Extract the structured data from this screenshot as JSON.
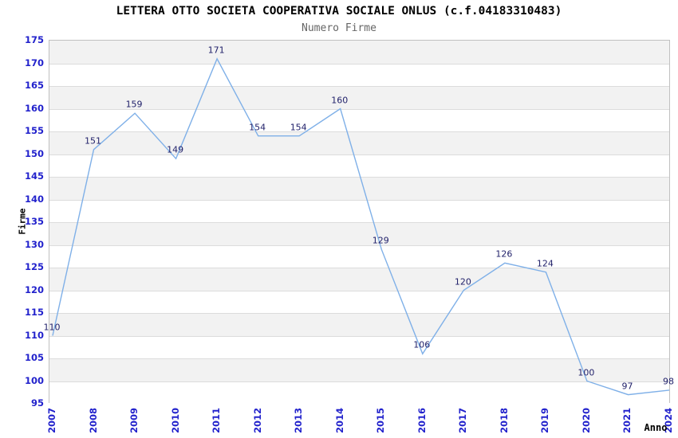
{
  "chart_data": {
    "type": "line",
    "title": "LETTERA OTTO SOCIETA COOPERATIVA SOCIALE ONLUS (c.f.04183310483)",
    "subtitle": "Numero Firme",
    "xlabel": "Anno",
    "ylabel": "Firme",
    "categories": [
      "2007",
      "2008",
      "2009",
      "2010",
      "2011",
      "2012",
      "2013",
      "2014",
      "2015",
      "2016",
      "2017",
      "2018",
      "2019",
      "2020",
      "2021",
      "2024"
    ],
    "values": [
      110,
      151,
      159,
      149,
      171,
      154,
      154,
      160,
      129,
      106,
      120,
      126,
      124,
      100,
      97,
      98
    ],
    "ylim": [
      95,
      175
    ],
    "ytick_step": 5,
    "grid": "horizontal-bands-alternating",
    "legend": "none",
    "data_labels": "above-points",
    "colors": {
      "line": "#7fb0e8",
      "data_label": "#22226b",
      "tick_label": "#2222cc",
      "band_gray": "#f2f2f2",
      "gridline": "#dcdcdc",
      "plot_border": "#c0c0c0",
      "title": "#000000",
      "subtitle": "#666666"
    }
  }
}
